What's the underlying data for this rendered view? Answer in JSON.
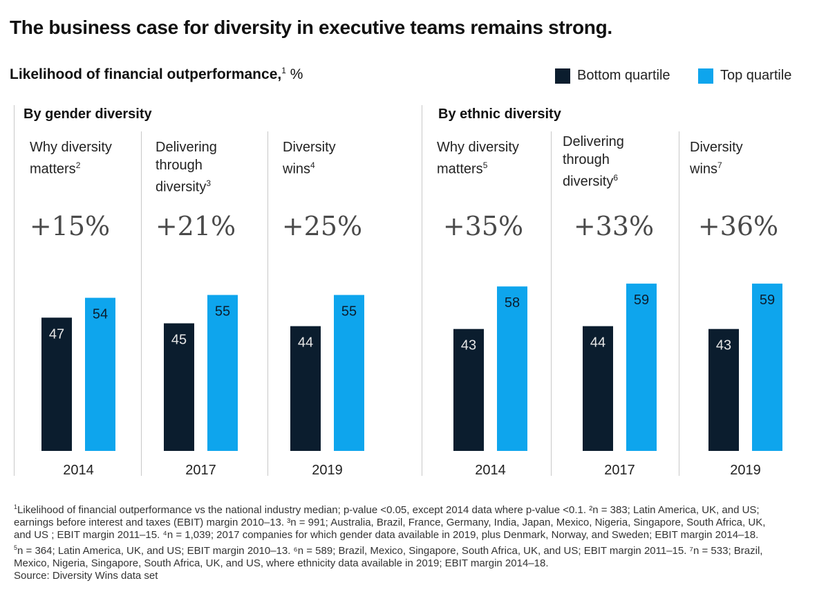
{
  "title": "The business case for diversity in executive teams remains strong.",
  "subtitle": "Likelihood of financial outperformance,",
  "subtitle_sup": "1",
  "subtitle_unit": " %",
  "legend": [
    {
      "label": "Bottom quartile",
      "color": "#0b1d2e"
    },
    {
      "label": "Top quartile",
      "color": "#0ea5ed"
    }
  ],
  "groups": [
    {
      "title": "By gender diversity"
    },
    {
      "title": "By ethnic diversity"
    }
  ],
  "columns": [
    {
      "label_lines": [
        "Why diversity",
        "matters"
      ],
      "sup": "2",
      "pct": "+15%"
    },
    {
      "label_lines": [
        "Delivering",
        "through",
        "diversity"
      ],
      "sup": "3",
      "pct": "+21%"
    },
    {
      "label_lines": [
        "Diversity",
        "wins"
      ],
      "sup": "4",
      "pct": "+25%"
    },
    {
      "label_lines": [
        "Why diversity",
        "matters"
      ],
      "sup": "5",
      "pct": "+35%"
    },
    {
      "label_lines": [
        "Delivering",
        "through",
        "diversity"
      ],
      "sup": "6",
      "pct": "+33%"
    },
    {
      "label_lines": [
        "Diversity",
        "wins"
      ],
      "sup": "7",
      "pct": "+36%"
    }
  ],
  "chart_data": {
    "type": "bar",
    "categories": [
      "2014",
      "2017",
      "2019",
      "2014",
      "2017",
      "2019"
    ],
    "series": [
      {
        "name": "Bottom quartile",
        "values": [
          47,
          45,
          44,
          43,
          44,
          43
        ]
      },
      {
        "name": "Top quartile",
        "values": [
          54,
          55,
          55,
          58,
          59,
          59
        ]
      }
    ],
    "title": "Likelihood of financial outperformance, %",
    "legend_position": "top-right",
    "grid": false
  },
  "footnotes": {
    "lines": [
      {
        "sup": "1",
        "text": "Likelihood of financial outperformance vs the national industry median; p-value <0.05, except 2014 data where p-value <0.1.  ²n = 383; Latin America, UK, and US;"
      },
      {
        "sup": "",
        "text": " earnings before interest and taxes (EBIT) margin 2010–13. ³n = 991; Australia, Brazil, France, Germany, India, Japan, Mexico, Nigeria, Singapore, South Africa, UK,"
      },
      {
        "sup": "",
        "text": " and US ; EBIT margin 2011–15. ⁴n = 1,039; 2017 companies for which gender data available in 2019, plus Denmark, Norway, and Sweden;  EBIT margin 2014–18."
      },
      {
        "sup": "5",
        "text": "n = 364; Latin America, UK, and US; EBIT margin 2010–13. ⁶n = 589; Brazil, Mexico, Singapore, South Africa, UK, and US; EBIT margin 2011–15. ⁷n = 533; Brazil,"
      },
      {
        "sup": "",
        "text": " Mexico, Nigeria, Singapore, South Africa, UK, and US, where ethnicity data available in 2019; EBIT margin 2014–18."
      }
    ],
    "source": "Source: Diversity Wins data set"
  }
}
